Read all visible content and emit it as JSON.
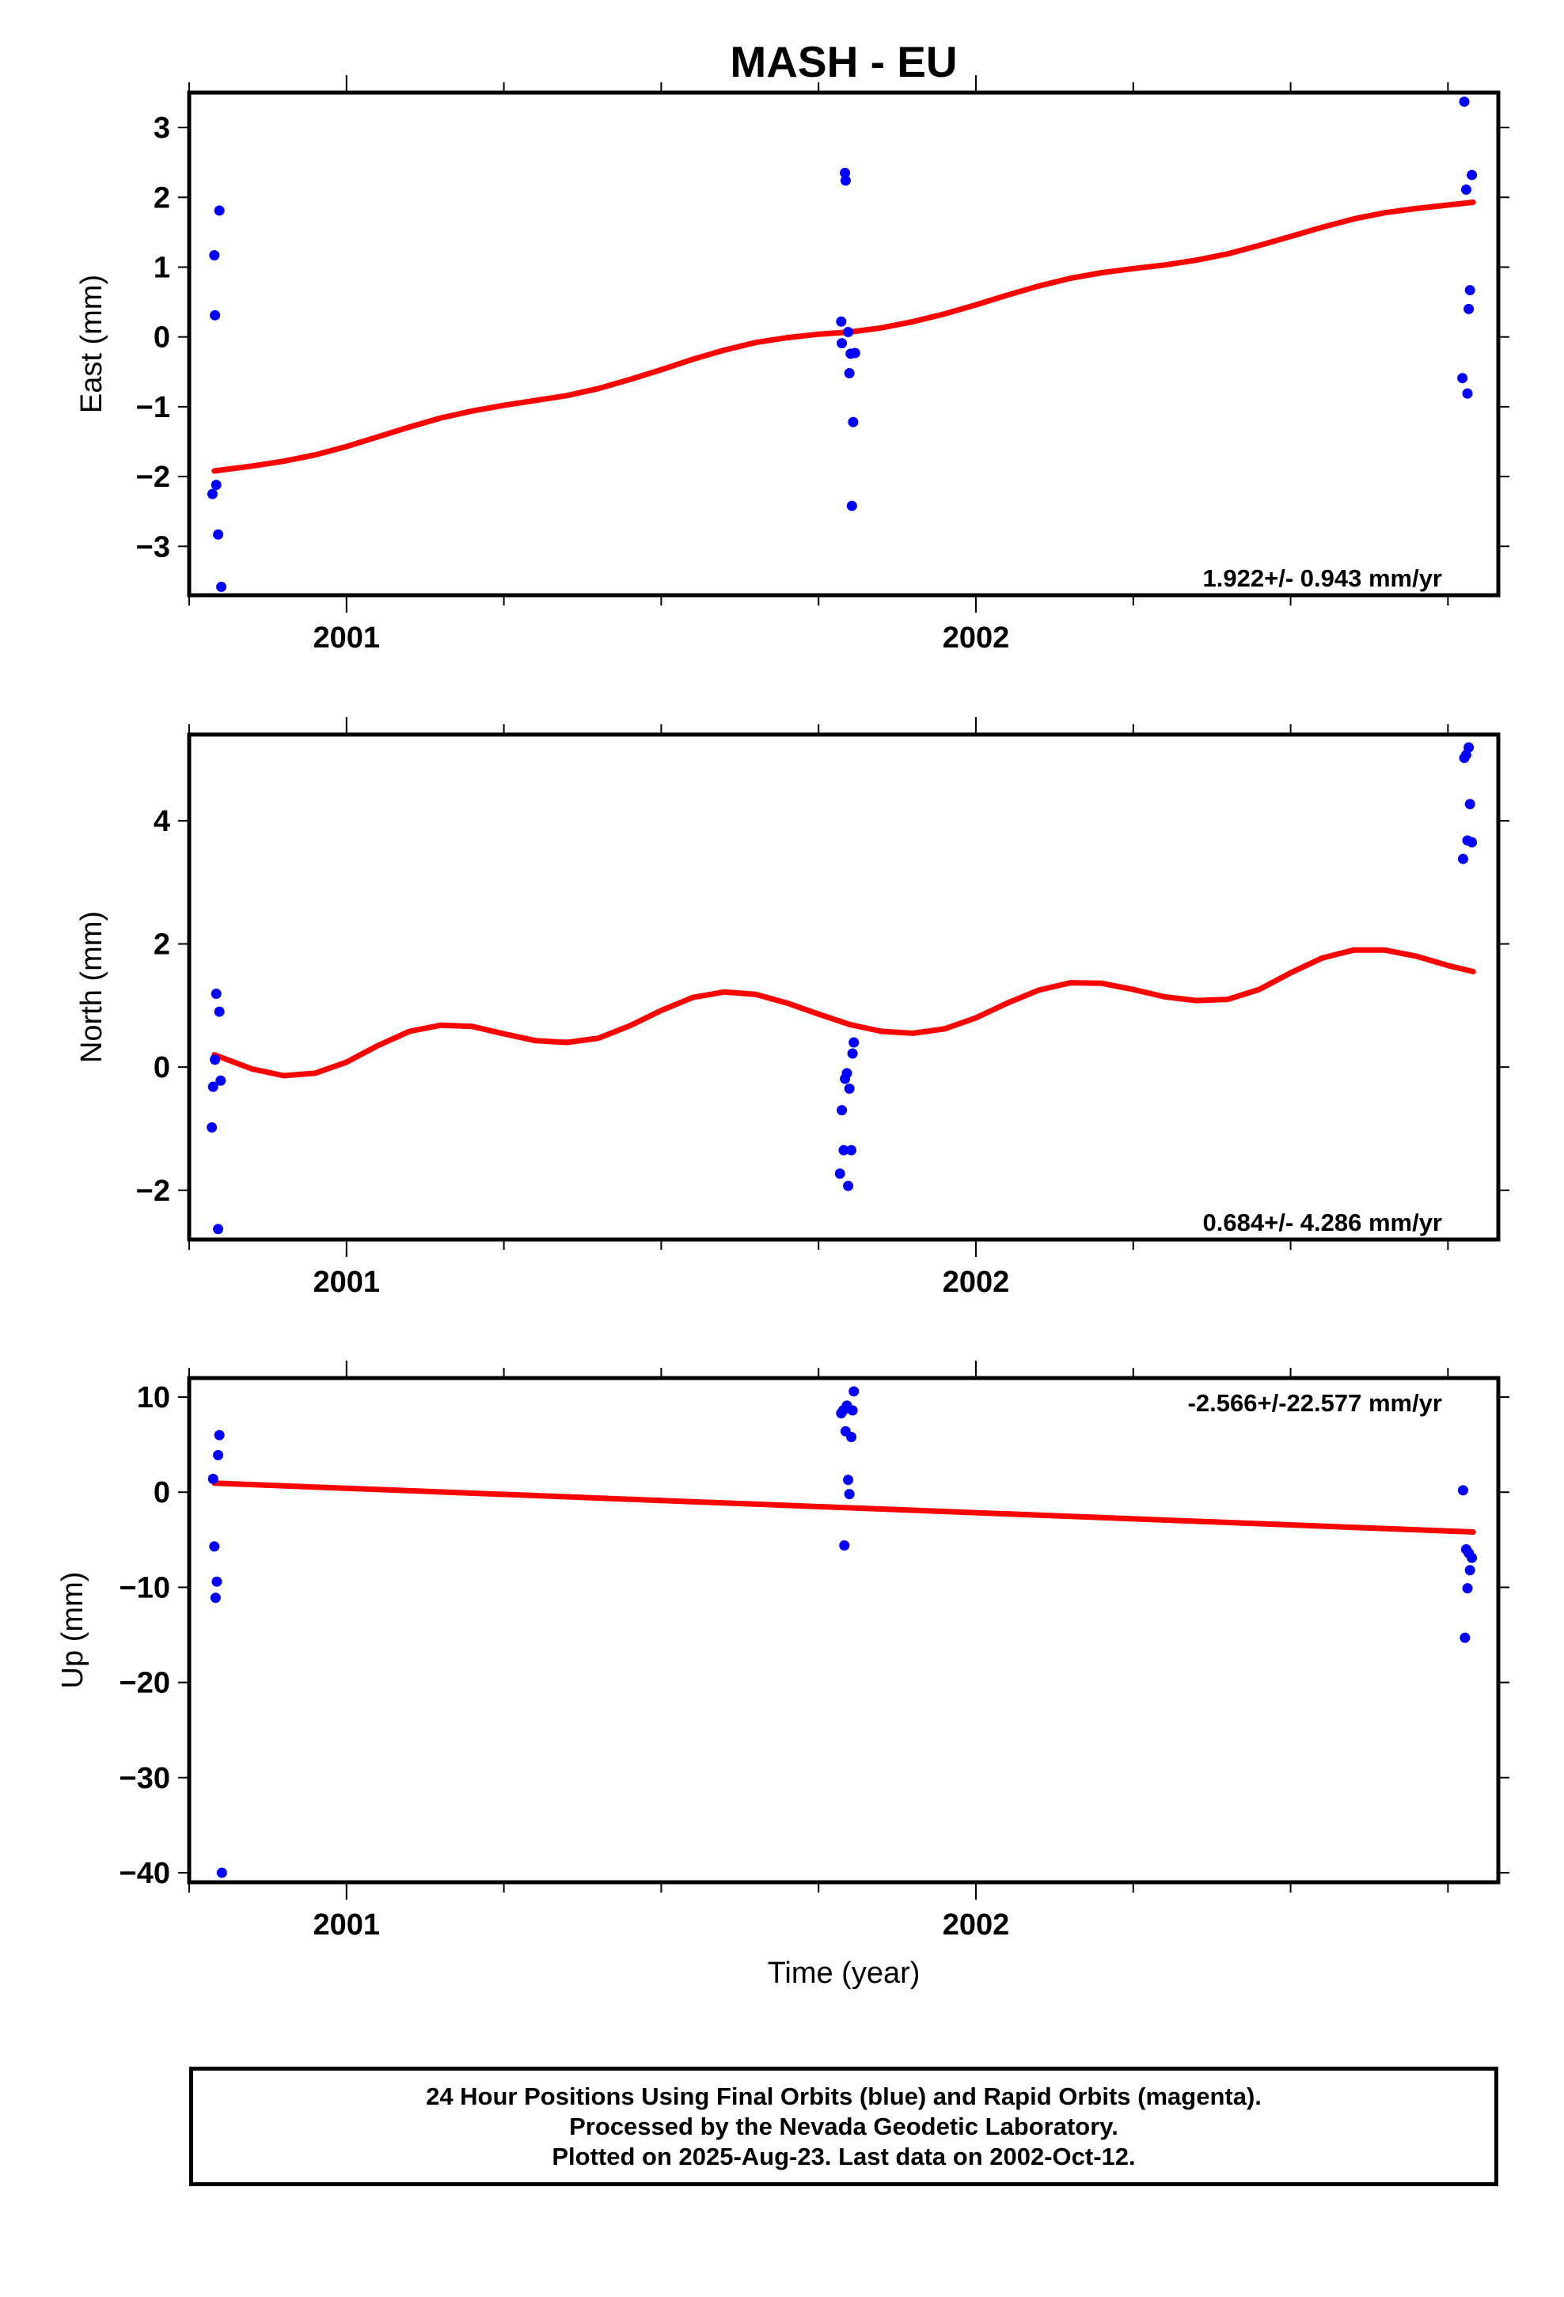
{
  "title": "MASH - EU",
  "xlabel": "Time (year)",
  "colors": {
    "final_points": "#0000ff",
    "fit_line": "#ff0000",
    "frame": "#000000"
  },
  "chart_data": [
    {
      "type": "scatter",
      "component": "east",
      "ylabel": "East (mm)",
      "rate_label": "1.922+/- 0.943 mm/yr",
      "rate_position": "bottom-right",
      "xlim": [
        2000.75,
        2002.83
      ],
      "ylim": [
        -3.7,
        3.5
      ],
      "yticks": [
        -3,
        -2,
        -1,
        0,
        1,
        2,
        3
      ],
      "xticks": [
        2001,
        2002
      ],
      "x_minor_step": 0.25,
      "points": [
        {
          "x": 2000.787,
          "y": -2.25
        },
        {
          "x": 2000.79,
          "y": 1.17
        },
        {
          "x": 2000.791,
          "y": 0.31
        },
        {
          "x": 2000.793,
          "y": -2.12
        },
        {
          "x": 2000.796,
          "y": -2.83
        },
        {
          "x": 2000.798,
          "y": 1.81
        },
        {
          "x": 2000.801,
          "y": -3.58
        },
        {
          "x": 2001.786,
          "y": 0.22
        },
        {
          "x": 2001.787,
          "y": -0.09
        },
        {
          "x": 2001.792,
          "y": 2.35
        },
        {
          "x": 2001.793,
          "y": 2.24
        },
        {
          "x": 2001.797,
          "y": 0.07
        },
        {
          "x": 2001.799,
          "y": -0.52
        },
        {
          "x": 2001.801,
          "y": -0.24
        },
        {
          "x": 2001.803,
          "y": -2.42
        },
        {
          "x": 2001.805,
          "y": -1.22
        },
        {
          "x": 2001.808,
          "y": -0.23
        },
        {
          "x": 2002.773,
          "y": -0.59
        },
        {
          "x": 2002.776,
          "y": 3.37
        },
        {
          "x": 2002.779,
          "y": 2.11
        },
        {
          "x": 2002.781,
          "y": -0.81
        },
        {
          "x": 2002.783,
          "y": 0.4
        },
        {
          "x": 2002.785,
          "y": 0.67
        },
        {
          "x": 2002.788,
          "y": 2.32
        }
      ],
      "fit": {
        "x": [
          2000.79,
          2000.85,
          2000.9,
          2000.95,
          2001.0,
          2001.05,
          2001.1,
          2001.15,
          2001.2,
          2001.25,
          2001.3,
          2001.35,
          2001.4,
          2001.45,
          2001.5,
          2001.55,
          2001.6,
          2001.65,
          2001.7,
          2001.75,
          2001.8,
          2001.85,
          2001.9,
          2001.95,
          2002.0,
          2002.05,
          2002.1,
          2002.15,
          2002.2,
          2002.25,
          2002.3,
          2002.35,
          2002.4,
          2002.45,
          2002.5,
          2002.55,
          2002.6,
          2002.65,
          2002.7,
          2002.75,
          2002.79
        ],
        "y": [
          -1.92,
          -1.85,
          -1.78,
          -1.69,
          -1.57,
          -1.43,
          -1.29,
          -1.16,
          -1.06,
          -0.98,
          -0.91,
          -0.84,
          -0.74,
          -0.61,
          -0.47,
          -0.32,
          -0.19,
          -0.08,
          -0.01,
          0.04,
          0.07,
          0.13,
          0.22,
          0.33,
          0.46,
          0.6,
          0.73,
          0.84,
          0.92,
          0.98,
          1.03,
          1.1,
          1.19,
          1.31,
          1.44,
          1.57,
          1.69,
          1.78,
          1.84,
          1.89,
          1.93
        ]
      }
    },
    {
      "type": "scatter",
      "component": "north",
      "ylabel": "North (mm)",
      "rate_label": "0.684+/- 4.286 mm/yr",
      "rate_position": "bottom-right",
      "xlim": [
        2000.75,
        2002.83
      ],
      "ylim": [
        -2.8,
        5.4
      ],
      "yticks": [
        -2,
        0,
        2,
        4
      ],
      "xticks": [
        2001,
        2002
      ],
      "x_minor_step": 0.25,
      "points": [
        {
          "x": 2000.786,
          "y": -0.98
        },
        {
          "x": 2000.788,
          "y": -0.32
        },
        {
          "x": 2000.791,
          "y": 0.12
        },
        {
          "x": 2000.793,
          "y": 1.19
        },
        {
          "x": 2000.796,
          "y": -2.63
        },
        {
          "x": 2000.798,
          "y": 0.9
        },
        {
          "x": 2000.8,
          "y": -0.22
        },
        {
          "x": 2001.784,
          "y": -1.73
        },
        {
          "x": 2001.787,
          "y": -0.7
        },
        {
          "x": 2001.79,
          "y": -1.35
        },
        {
          "x": 2001.792,
          "y": -0.19
        },
        {
          "x": 2001.795,
          "y": -0.1
        },
        {
          "x": 2001.797,
          "y": -1.93
        },
        {
          "x": 2001.799,
          "y": -0.35
        },
        {
          "x": 2001.802,
          "y": -1.35
        },
        {
          "x": 2001.804,
          "y": 0.22
        },
        {
          "x": 2001.806,
          "y": 0.4
        },
        {
          "x": 2002.774,
          "y": 3.38
        },
        {
          "x": 2002.776,
          "y": 5.02
        },
        {
          "x": 2002.779,
          "y": 5.07
        },
        {
          "x": 2002.781,
          "y": 3.68
        },
        {
          "x": 2002.783,
          "y": 5.19
        },
        {
          "x": 2002.785,
          "y": 4.27
        },
        {
          "x": 2002.788,
          "y": 3.65
        }
      ],
      "fit": {
        "x": [
          2000.79,
          2000.85,
          2000.9,
          2000.95,
          2001.0,
          2001.05,
          2001.1,
          2001.15,
          2001.2,
          2001.25,
          2001.3,
          2001.35,
          2001.4,
          2001.45,
          2001.5,
          2001.55,
          2001.6,
          2001.65,
          2001.7,
          2001.75,
          2001.8,
          2001.85,
          2001.9,
          2001.95,
          2002.0,
          2002.05,
          2002.1,
          2002.15,
          2002.2,
          2002.25,
          2002.3,
          2002.35,
          2002.4,
          2002.45,
          2002.5,
          2002.55,
          2002.6,
          2002.65,
          2002.7,
          2002.75,
          2002.79
        ],
        "y": [
          0.2,
          -0.03,
          -0.14,
          -0.1,
          0.08,
          0.35,
          0.58,
          0.68,
          0.66,
          0.54,
          0.43,
          0.4,
          0.47,
          0.67,
          0.92,
          1.13,
          1.22,
          1.18,
          1.04,
          0.86,
          0.69,
          0.58,
          0.55,
          0.62,
          0.8,
          1.04,
          1.25,
          1.37,
          1.36,
          1.26,
          1.14,
          1.08,
          1.1,
          1.26,
          1.53,
          1.77,
          1.9,
          1.9,
          1.8,
          1.65,
          1.55
        ]
      }
    },
    {
      "type": "scatter",
      "component": "up",
      "ylabel": "Up (mm)",
      "rate_label": "-2.566+/-22.577 mm/yr",
      "rate_position": "top-right",
      "xlim": [
        2000.75,
        2002.83
      ],
      "ylim": [
        -41.0,
        12.0
      ],
      "yticks": [
        -40,
        -30,
        -20,
        -10,
        0,
        10
      ],
      "xticks": [
        2001,
        2002
      ],
      "x_minor_step": 0.25,
      "points": [
        {
          "x": 2000.788,
          "y": 1.4
        },
        {
          "x": 2000.79,
          "y": -5.7
        },
        {
          "x": 2000.792,
          "y": -11.1
        },
        {
          "x": 2000.794,
          "y": -9.4
        },
        {
          "x": 2000.796,
          "y": 3.9
        },
        {
          "x": 2000.798,
          "y": 6.0
        },
        {
          "x": 2000.802,
          "y": -40.0
        },
        {
          "x": 2001.786,
          "y": 8.3
        },
        {
          "x": 2001.789,
          "y": 8.6
        },
        {
          "x": 2001.791,
          "y": -5.6
        },
        {
          "x": 2001.793,
          "y": 6.4
        },
        {
          "x": 2001.795,
          "y": 9.1
        },
        {
          "x": 2001.797,
          "y": 1.3
        },
        {
          "x": 2001.799,
          "y": -0.2
        },
        {
          "x": 2001.802,
          "y": 5.8
        },
        {
          "x": 2001.804,
          "y": 8.6
        },
        {
          "x": 2001.806,
          "y": 10.6
        },
        {
          "x": 2002.774,
          "y": 0.2
        },
        {
          "x": 2002.777,
          "y": -15.3
        },
        {
          "x": 2002.779,
          "y": -6.0
        },
        {
          "x": 2002.781,
          "y": -10.1
        },
        {
          "x": 2002.783,
          "y": -6.4
        },
        {
          "x": 2002.785,
          "y": -8.2
        },
        {
          "x": 2002.788,
          "y": -6.9
        }
      ],
      "fit": {
        "x": [
          2000.79,
          2002.79
        ],
        "y": [
          0.95,
          -4.18
        ]
      }
    }
  ],
  "footer": {
    "line1": "24 Hour Positions Using Final Orbits (blue) and Rapid Orbits (magenta).",
    "line2": "Processed by the Nevada Geodetic Laboratory.",
    "line3": "Plotted on 2025-Aug-23. Last data on 2002-Oct-12."
  }
}
